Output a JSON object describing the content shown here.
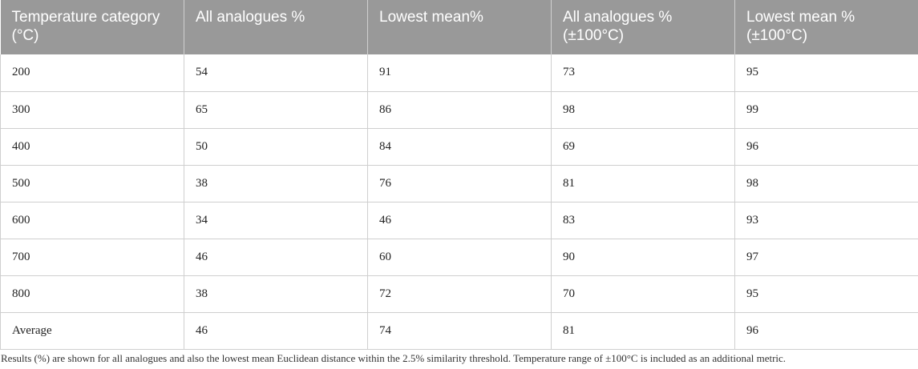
{
  "table": {
    "headers": [
      "Temperature category (°C)",
      "All analogues %",
      "Lowest mean%",
      "All analogues % (±100°C)",
      "Lowest mean % (±100°C)"
    ],
    "rows": [
      [
        "200",
        "54",
        "91",
        "73",
        "95"
      ],
      [
        "300",
        "65",
        "86",
        "98",
        "99"
      ],
      [
        "400",
        "50",
        "84",
        "69",
        "96"
      ],
      [
        "500",
        "38",
        "76",
        "81",
        "98"
      ],
      [
        "600",
        "34",
        "46",
        "83",
        "93"
      ],
      [
        "700",
        "46",
        "60",
        "90",
        "97"
      ],
      [
        "800",
        "38",
        "72",
        "70",
        "95"
      ],
      [
        "Average",
        "46",
        "74",
        "81",
        "96"
      ]
    ]
  },
  "caption": "Results (%) are shown for all analogues and also the lowest mean Euclidean distance within the 2.5% similarity threshold. Temperature range of ±100°C is included as an additional metric."
}
